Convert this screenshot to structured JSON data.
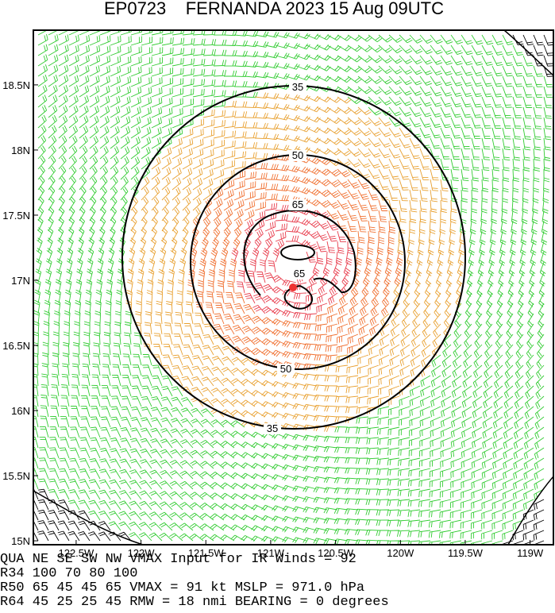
{
  "header": {
    "title": "EP0723    FERNANDA 2023 15 Aug 09UTC"
  },
  "map": {
    "xlim": [
      -122.83,
      -118.82
    ],
    "ylim": [
      14.97,
      18.92
    ],
    "xticks": [
      {
        "value": -122.5,
        "label": "122.5W"
      },
      {
        "value": -122,
        "label": "122W"
      },
      {
        "value": -121.5,
        "label": "121.5W"
      },
      {
        "value": -121,
        "label": "121W"
      },
      {
        "value": -120.5,
        "label": "120.5W"
      },
      {
        "value": -120,
        "label": "120W"
      },
      {
        "value": -119.5,
        "label": "119.5W"
      },
      {
        "value": -119,
        "label": "119W"
      }
    ],
    "yticks": [
      {
        "value": 15,
        "label": "15N"
      },
      {
        "value": 15.5,
        "label": "15.5N"
      },
      {
        "value": 16,
        "label": "16N"
      },
      {
        "value": 16.5,
        "label": "16.5N"
      },
      {
        "value": 17,
        "label": "17N"
      },
      {
        "value": 17.5,
        "label": "17.5N"
      },
      {
        "value": 18,
        "label": "18N"
      },
      {
        "value": 18.5,
        "label": "18.5N"
      }
    ],
    "contour_labels": [
      "35",
      "50",
      "65",
      "35",
      "50",
      "65"
    ]
  },
  "info": {
    "lines": [
      "QUA   NE   SE   SW   NW   VMAX Input for IR Winds =   92",
      "R34  100   70   80  100",
      "R50   65   45   45   65   VMAX =   91 kt MSLP =  971.0 hPa",
      "R64   45   25   25   45   RMW =   18 nmi BEARING =    0 degrees"
    ]
  }
}
